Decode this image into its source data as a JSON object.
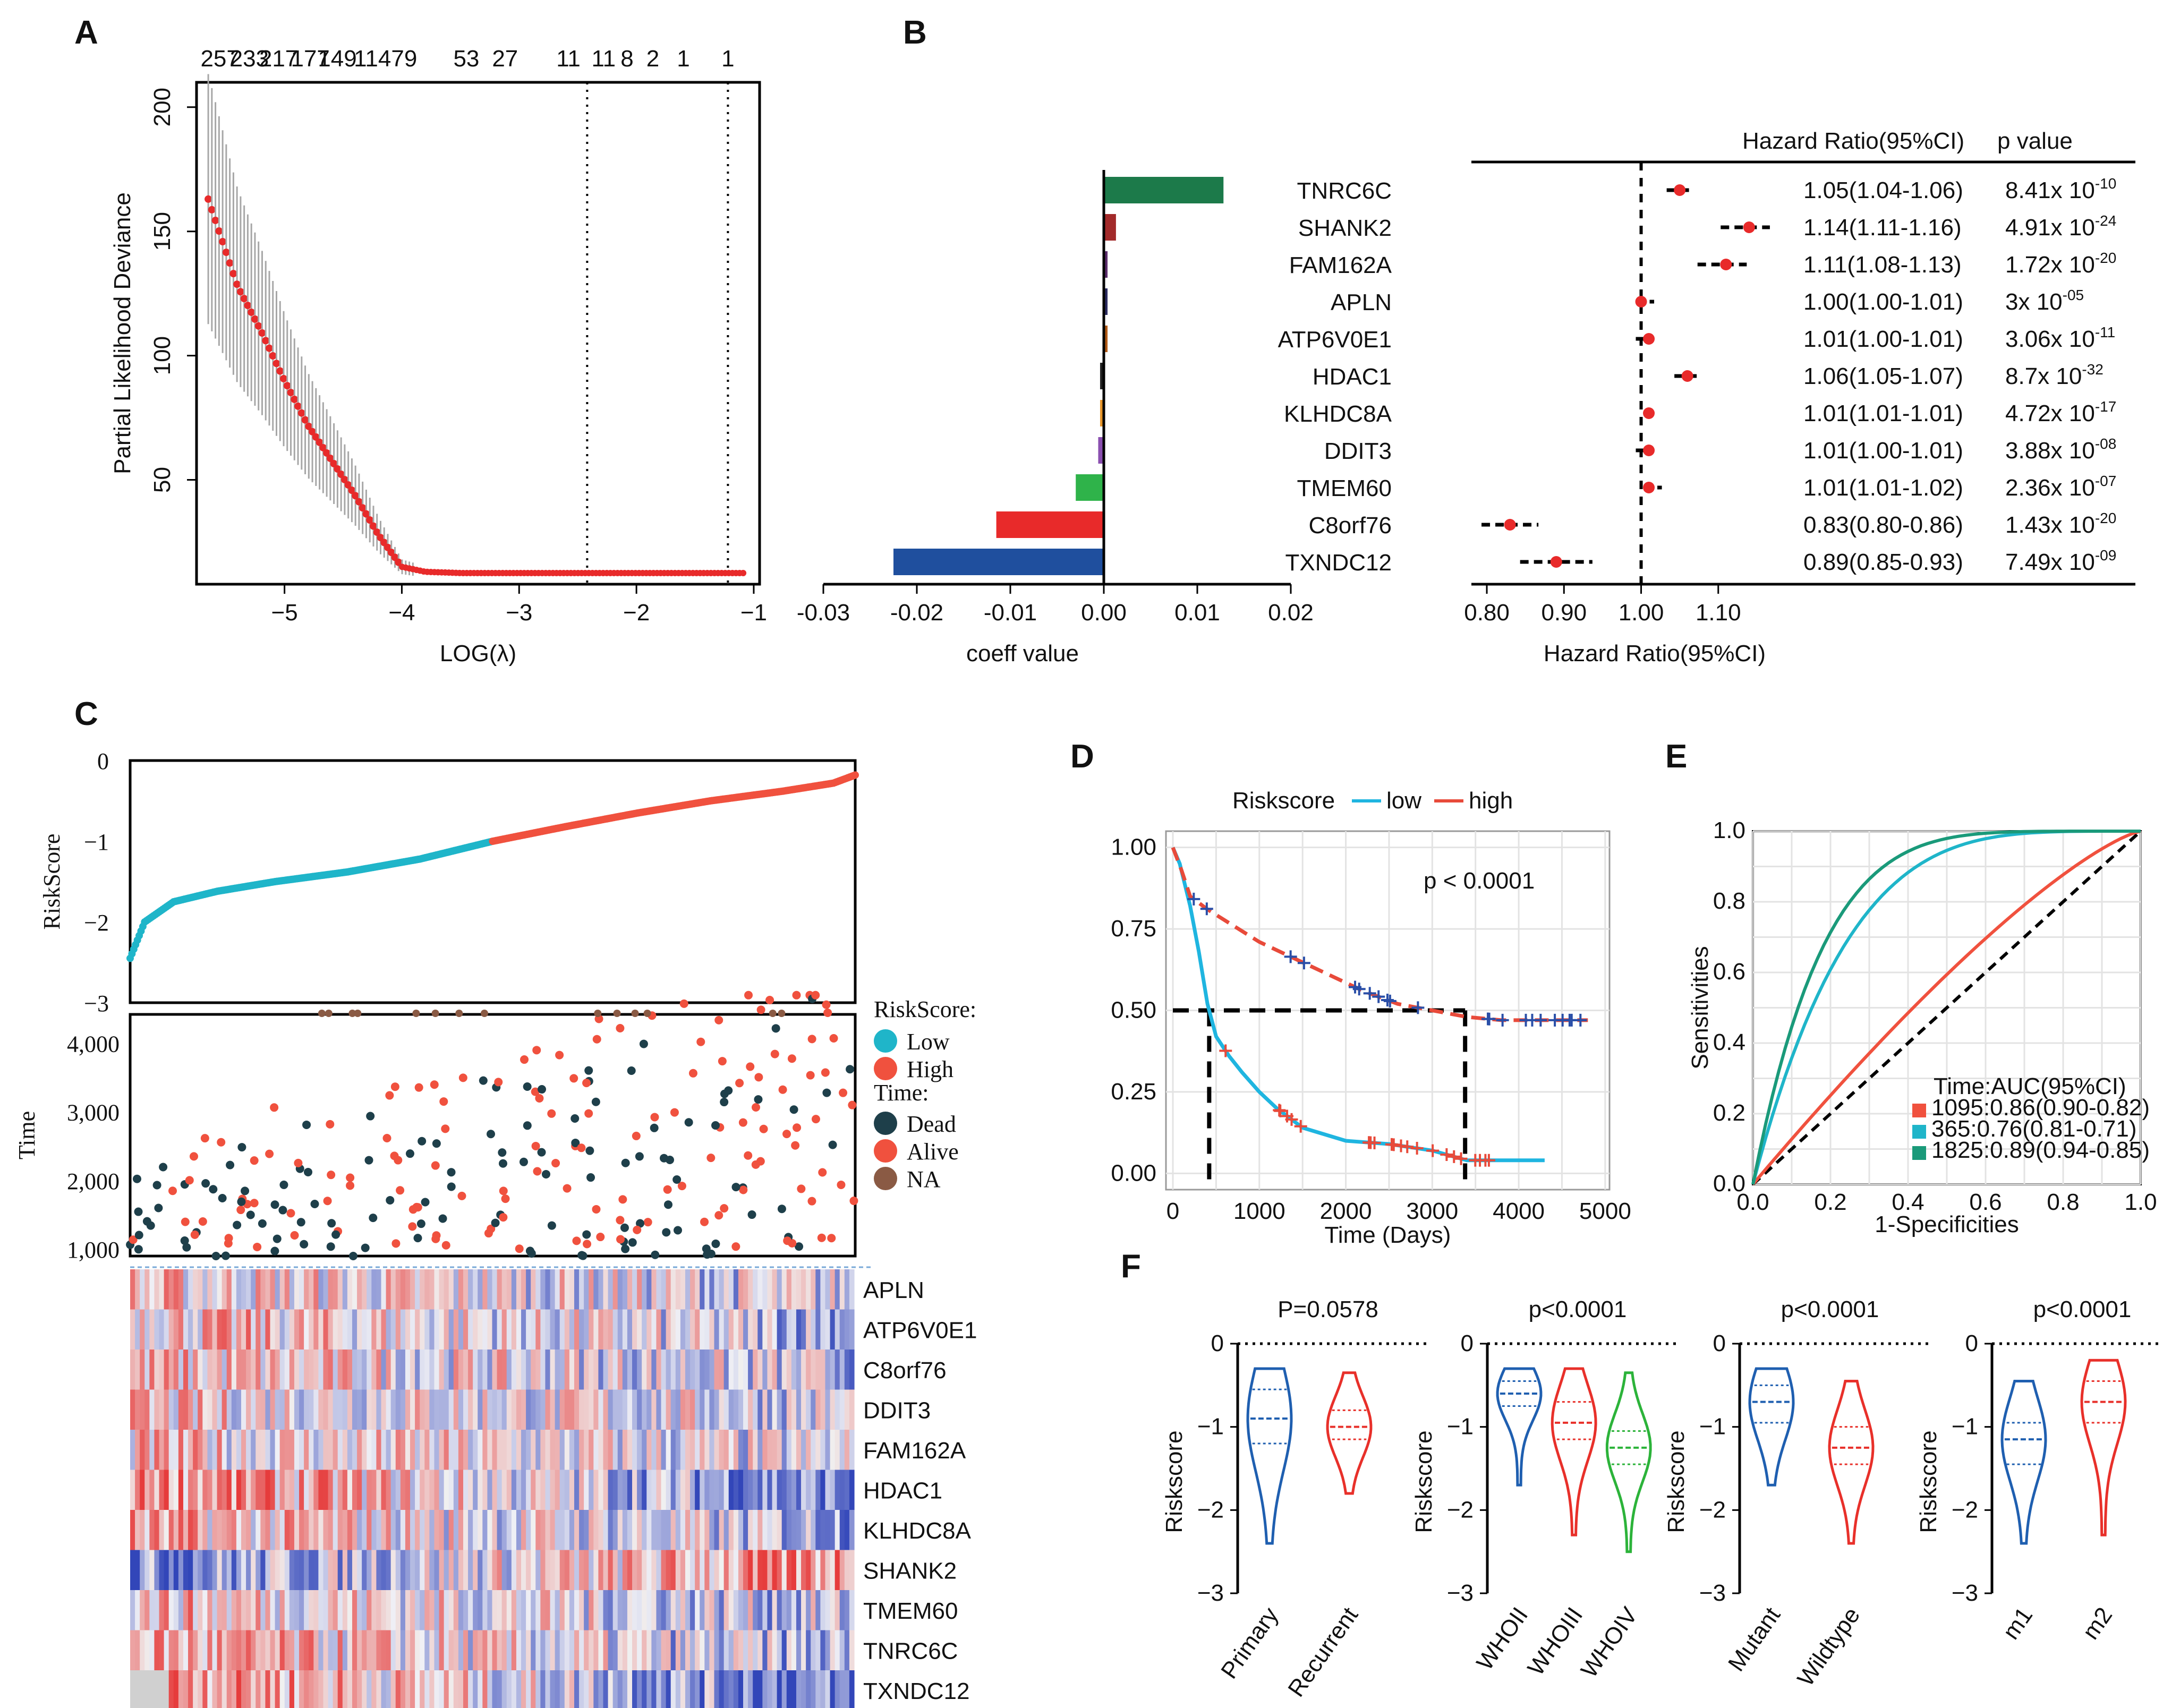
{
  "panels": {
    "A": "A",
    "B": "B",
    "C": "C",
    "D": "D",
    "E": "E",
    "F": "F"
  },
  "chart_data": [
    {
      "id": "A",
      "type": "scatter",
      "xlabel": "LOG(λ)",
      "ylabel": "Partial Likelihood Deviance",
      "xlim": [
        -5.75,
        -0.95
      ],
      "ylim": [
        8,
        210
      ],
      "xticks": [
        -5,
        -4,
        -3,
        -2,
        -1
      ],
      "yticks": [
        50,
        100,
        150,
        200
      ],
      "top_labels": [
        "257",
        "233",
        "217",
        "177",
        "149",
        "114",
        "79",
        "53",
        "27",
        "11",
        "11",
        "8",
        "2",
        "1",
        "1"
      ],
      "top_positions": [
        -5.55,
        -5.3,
        -5.05,
        -4.78,
        -4.55,
        -4.25,
        -3.98,
        -3.45,
        -3.12,
        -2.58,
        -2.28,
        -2.08,
        -1.86,
        -1.6,
        -1.22
      ],
      "vlines": [
        -2.42,
        -1.22
      ],
      "curve": {
        "x": [
          -5.65,
          -5.4,
          -5.2,
          -5.0,
          -4.8,
          -4.6,
          -4.4,
          -4.2,
          -4.0,
          -3.8,
          -3.5,
          -3.0,
          -2.0,
          -1.05
        ],
        "y": [
          163,
          128,
          110,
          90,
          72,
          58,
          44,
          28,
          15,
          13,
          12.5,
          12.5,
          12.5,
          12.5
        ]
      }
    },
    {
      "id": "B-coeff",
      "type": "bar",
      "xlabel": "coeff value",
      "xlim": [
        -0.03,
        0.02
      ],
      "xticks": [
        "-0.03",
        "-0.02",
        "-0.01",
        "0.00",
        "0.01",
        "0.02"
      ],
      "xtick_values": [
        -0.03,
        -0.02,
        -0.01,
        0,
        0.01,
        0.02
      ],
      "categories": [
        "TNRC6C",
        "SHANK2",
        "FAM162A",
        "APLN",
        "ATP6V0E1",
        "HDAC1",
        "KLHDC8A",
        "DDIT3",
        "TMEM60",
        "C8orf76",
        "TXNDC12"
      ],
      "values": [
        0.0128,
        0.0013,
        0.0004,
        0.0004,
        0.0004,
        -0.0004,
        -0.0004,
        -0.0006,
        -0.003,
        -0.0115,
        -0.0225
      ],
      "colors": [
        "#1c7a4a",
        "#a22a2a",
        "#5b2d6b",
        "#2b2b60",
        "#b05a16",
        "#222222",
        "#e8962a",
        "#8a4fb0",
        "#2fb34a",
        "#e82a2a",
        "#1f4f9e"
      ]
    },
    {
      "id": "B-forest",
      "type": "scatter",
      "header_hr": "Hazard Ratio(95%CI)",
      "header_p": "p value",
      "xlabel": "Hazard Ratio(95%CI)",
      "xlim": [
        0.78,
        1.2
      ],
      "xticks": [
        "0.80",
        "0.90",
        "1.00",
        "1.10"
      ],
      "xtick_values": [
        0.8,
        0.9,
        1.0,
        1.1
      ],
      "ref_line": 1.0,
      "hr": [
        1.05,
        1.14,
        1.11,
        1.0,
        1.01,
        1.06,
        1.01,
        1.01,
        1.01,
        0.83,
        0.89
      ],
      "low": [
        1.04,
        1.11,
        1.08,
        1.0,
        1.0,
        1.05,
        1.01,
        1.0,
        1.01,
        0.8,
        0.85
      ],
      "high": [
        1.06,
        1.16,
        1.13,
        1.01,
        1.01,
        1.07,
        1.01,
        1.01,
        1.02,
        0.86,
        0.93
      ],
      "hr_text": [
        "1.05(1.04-1.06)",
        "1.14(1.11-1.16)",
        "1.11(1.08-1.13)",
        "1.00(1.00-1.01)",
        "1.01(1.00-1.01)",
        "1.06(1.05-1.07)",
        "1.01(1.01-1.01)",
        "1.01(1.00-1.01)",
        "1.01(1.01-1.02)",
        "0.83(0.80-0.86)",
        "0.89(0.85-0.93)"
      ],
      "p_base": [
        "8.41x 10",
        "4.91x 10",
        "1.72x 10",
        "3x 10",
        "3.06x 10",
        "8.7x 10",
        "4.72x 10",
        "3.88x 10",
        "2.36x 10",
        "1.43x 10",
        "7.49x 10"
      ],
      "p_exp": [
        "-10",
        "-24",
        "-20",
        "-05",
        "-11",
        "-32",
        "-17",
        "-08",
        "-07",
        "-20",
        "-09"
      ]
    },
    {
      "id": "C-riskscore",
      "type": "line",
      "ylabel": "RiskScore",
      "ylim": [
        -3,
        0
      ],
      "yticks": [
        0,
        -1,
        -2,
        -3
      ],
      "low_color": "#1fb5c9",
      "high_color": "#f0513e",
      "curve_rank": [
        0,
        0.02,
        0.06,
        0.12,
        0.2,
        0.3,
        0.4,
        0.5,
        0.6,
        0.7,
        0.8,
        0.9,
        0.97,
        1.0
      ],
      "curve_value": [
        -2.45,
        -2.0,
        -1.75,
        -1.62,
        -1.5,
        -1.38,
        -1.22,
        -1.0,
        -0.82,
        -0.65,
        -0.5,
        -0.38,
        -0.28,
        -0.18
      ]
    },
    {
      "id": "C-time",
      "type": "scatter",
      "ylabel": "Time",
      "yticks": [
        "4,000",
        "3,000",
        "2,000",
        "1,000"
      ],
      "ytick_values": [
        4000,
        3000,
        2000,
        1000
      ],
      "ylim": [
        900,
        4420
      ],
      "dead_color": "#1e3f4a",
      "alive_color": "#f0513e",
      "na_color": "#8a5a44",
      "legend_title1": "RiskScore:",
      "legend_low": "Low",
      "legend_high": "High",
      "legend_title2": "Time:",
      "legend_dead": "Dead",
      "legend_alive": "Alive",
      "legend_na": "NA"
    },
    {
      "id": "C-heatmap",
      "type": "heatmap",
      "genes": [
        "APLN",
        "ATP6V0E1",
        "C8orf76",
        "DDIT3",
        "FAM162A",
        "HDAC1",
        "KLHDC8A",
        "SHANK2",
        "TMEM60",
        "TNRC6C",
        "TXNDC12"
      ]
    },
    {
      "id": "D",
      "type": "line",
      "legend_title": "Riskscore",
      "legend_low": "low",
      "legend_high": "high",
      "annotation": "p < 0.0001",
      "xlabel": "Time (Days)",
      "xlim": [
        -80,
        5050
      ],
      "ylim": [
        -0.05,
        1.05
      ],
      "xticks": [
        0,
        1000,
        2000,
        3000,
        4000,
        5000
      ],
      "yticks": [
        "0.00",
        "0.25",
        "0.50",
        "0.75",
        "1.00"
      ],
      "ytick_values": [
        0,
        0.25,
        0.5,
        0.75,
        1
      ],
      "median_low": 420,
      "median_high": 3380,
      "series": [
        {
          "name": "low",
          "color": "#1fb5e0",
          "x": [
            0,
            80,
            200,
            300,
            400,
            500,
            650,
            800,
            1000,
            1200,
            1500,
            2000,
            2500,
            3000,
            3400,
            4300
          ],
          "y": [
            1.0,
            0.95,
            0.82,
            0.68,
            0.52,
            0.42,
            0.36,
            0.31,
            0.25,
            0.2,
            0.14,
            0.1,
            0.09,
            0.07,
            0.04,
            0.04
          ]
        },
        {
          "name": "high",
          "color": "#e84a3a",
          "x": [
            0,
            100,
            200,
            400,
            700,
            1000,
            1400,
            1800,
            2200,
            2600,
            3000,
            3400,
            3800,
            4800
          ],
          "y": [
            1.0,
            0.93,
            0.85,
            0.81,
            0.76,
            0.71,
            0.66,
            0.61,
            0.56,
            0.52,
            0.5,
            0.48,
            0.47,
            0.47
          ]
        }
      ]
    },
    {
      "id": "E",
      "type": "line",
      "xlabel": "1-Specificities",
      "ylabel": "Sensitivities",
      "xlim": [
        0,
        1
      ],
      "ylim": [
        0,
        1
      ],
      "xticks": [
        "0.0",
        "0.2",
        "0.4",
        "0.6",
        "0.8",
        "1.0"
      ],
      "yticks": [
        "0.0",
        "0.2",
        "0.4",
        "0.6",
        "0.8",
        "1.0"
      ],
      "tick_values": [
        0,
        0.2,
        0.4,
        0.6,
        0.8,
        1.0
      ],
      "legend_title": "Time:AUC(95%CI)",
      "series": [
        {
          "name": "1095:0.86(0.90-0.82)",
          "color": "#f0513e",
          "k": 1.3
        },
        {
          "name": "365:0.76(0.81-0.71)",
          "color": "#1fb5c9",
          "k": 4.2
        },
        {
          "name": "1825:0.89(0.94-0.85)",
          "color": "#1a9a7a",
          "k": 5.6
        }
      ]
    },
    {
      "id": "F",
      "type": "violin",
      "ylabel": "Riskscore",
      "yticks": [
        "0",
        "-1",
        "-2",
        "-3"
      ],
      "ytick_values": [
        0,
        -1,
        -2,
        -3
      ],
      "ylim": [
        -3,
        0
      ],
      "subplots": [
        {
          "title": "P=0.0578",
          "groups": [
            {
              "label": "Primary",
              "color": "#1f5fb0",
              "min": -2.4,
              "max": -0.3,
              "med": -0.9,
              "q1": -1.2,
              "q3": -0.55
            },
            {
              "label": "Recurrent",
              "color": "#e8302a",
              "min": -1.8,
              "max": -0.35,
              "med": -1.0,
              "q1": -1.15,
              "q3": -0.8
            }
          ]
        },
        {
          "title": "p<0.0001",
          "groups": [
            {
              "label": "WHOII",
              "color": "#1f5fb0",
              "min": -1.7,
              "max": -0.3,
              "med": -0.6,
              "q1": -0.75,
              "q3": -0.45
            },
            {
              "label": "WHOIII",
              "color": "#e8302a",
              "min": -2.3,
              "max": -0.3,
              "med": -0.95,
              "q1": -1.15,
              "q3": -0.7
            },
            {
              "label": "WHOIV",
              "color": "#2cb33a",
              "min": -2.5,
              "max": -0.35,
              "med": -1.25,
              "q1": -1.45,
              "q3": -1.05
            }
          ]
        },
        {
          "title": "p<0.0001",
          "groups": [
            {
              "label": "Mutant",
              "color": "#1f5fb0",
              "min": -1.7,
              "max": -0.3,
              "med": -0.7,
              "q1": -0.95,
              "q3": -0.5
            },
            {
              "label": "Wildtype",
              "color": "#e8302a",
              "min": -2.4,
              "max": -0.45,
              "med": -1.25,
              "q1": -1.45,
              "q3": -1.0
            }
          ]
        },
        {
          "title": "p<0.0001",
          "groups": [
            {
              "label": "m1",
              "color": "#1f5fb0",
              "min": -2.4,
              "max": -0.45,
              "med": -1.15,
              "q1": -1.45,
              "q3": -0.95
            },
            {
              "label": "m2",
              "color": "#e8302a",
              "min": -2.3,
              "max": -0.2,
              "med": -0.7,
              "q1": -0.95,
              "q3": -0.45
            }
          ]
        }
      ]
    }
  ]
}
